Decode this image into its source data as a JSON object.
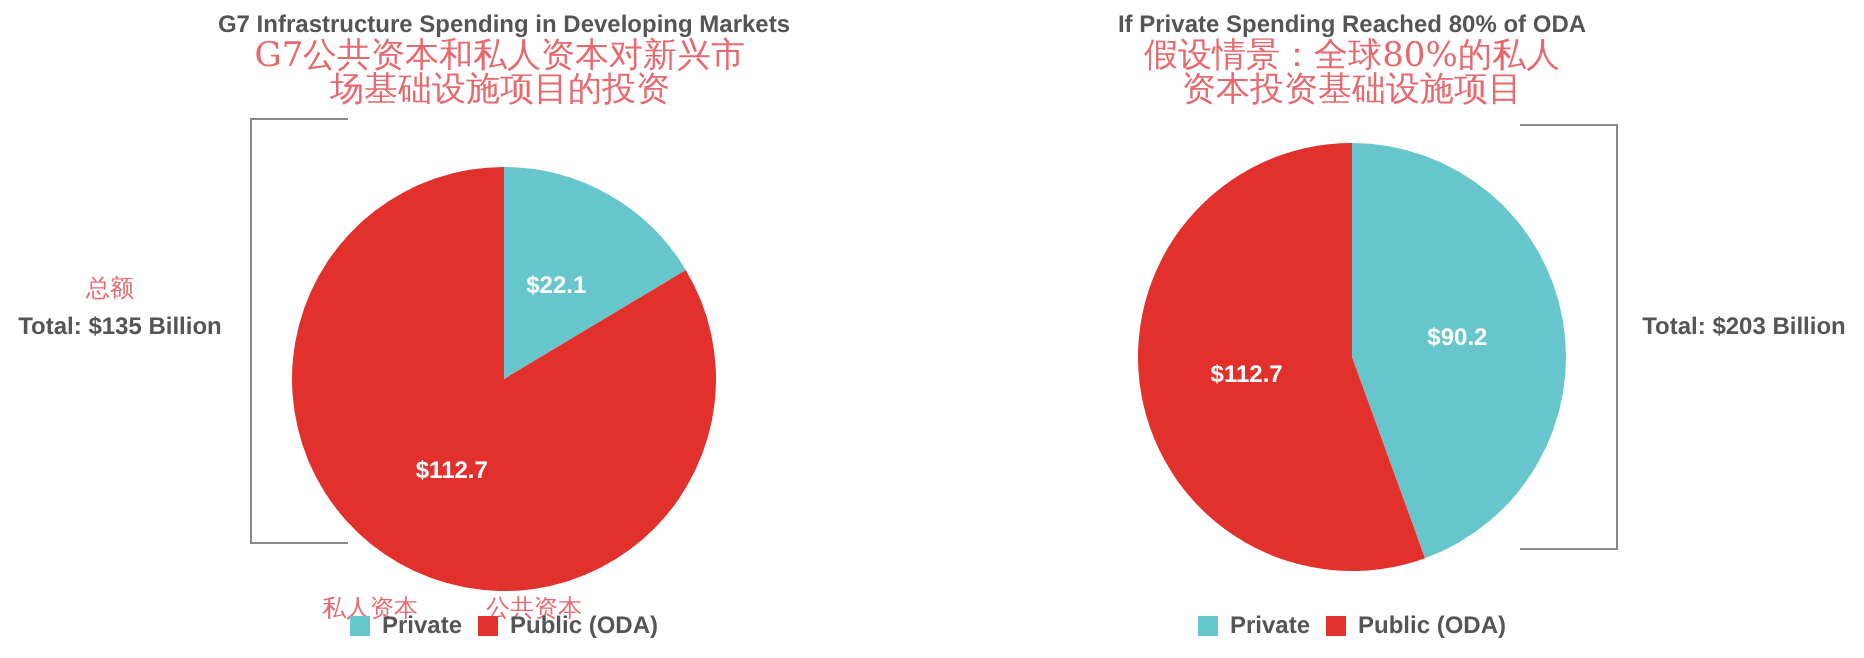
{
  "chart_data": [
    {
      "type": "pie",
      "title": "G7 Infrastructure Spending in Developing Markets",
      "subtitle": "G7公共资本和私人资本对新兴市场基础设施项目的投资",
      "categories": [
        "Private",
        "Public (ODA)"
      ],
      "values": [
        22.1,
        112.7
      ],
      "colors": [
        "#67c6cc",
        "#e2302d"
      ],
      "value_labels": [
        "$22.1",
        "$112.7"
      ],
      "legend": "bottom",
      "annotations": [
        "总额",
        "Total: $135 Billion",
        "私人资本",
        "公共资本"
      ]
    },
    {
      "type": "pie",
      "title": "If Private Spending Reached 80% of ODA",
      "subtitle": "假设情景：全球80%的私人资本投资基础设施项目",
      "categories": [
        "Private",
        "Public (ODA)"
      ],
      "values": [
        90.2,
        112.7
      ],
      "colors": [
        "#67c6cc",
        "#e2302d"
      ],
      "value_labels": [
        "$90.2",
        "$112.7"
      ],
      "legend": "bottom",
      "annotations": [
        "Total: $203 Billion"
      ]
    }
  ]
}
